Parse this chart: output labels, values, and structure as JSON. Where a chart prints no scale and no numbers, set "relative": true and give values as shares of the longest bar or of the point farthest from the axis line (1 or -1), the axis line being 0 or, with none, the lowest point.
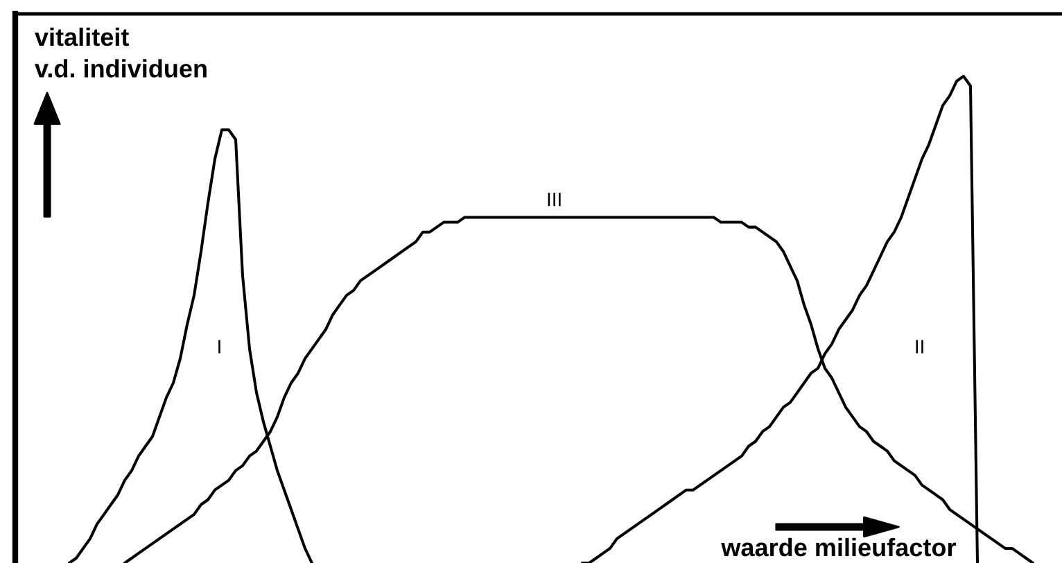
{
  "chart_data": {
    "type": "line",
    "relative": true,
    "line_style": "solid",
    "ylabel": "vitaliteit\nv.d. individuen",
    "xlabel": "waarde milieufactor",
    "categories": [
      null,
      null,
      null,
      null,
      null,
      null,
      null,
      null,
      null,
      null,
      null,
      null,
      null,
      null,
      null,
      null,
      null,
      null,
      null,
      null,
      null,
      null,
      null,
      null,
      null,
      null,
      null,
      null,
      null,
      null,
      null,
      null,
      null,
      null,
      null,
      null,
      null,
      null,
      null,
      null,
      null,
      null,
      null,
      null,
      null,
      null,
      null,
      null,
      null,
      null,
      null,
      null,
      null,
      null,
      null,
      null,
      null,
      null,
      null,
      null,
      null,
      null,
      null,
      null,
      null,
      null,
      null,
      null,
      null,
      null,
      null,
      null,
      null,
      null,
      null,
      null,
      null,
      null,
      null,
      null,
      null,
      null,
      null,
      null,
      null,
      null,
      null,
      null,
      null,
      null,
      null,
      null,
      null,
      null,
      null,
      null,
      null,
      null,
      null,
      null,
      null,
      null,
      null,
      null,
      null,
      null,
      null,
      null,
      null,
      null,
      null,
      null,
      null,
      null,
      null,
      null,
      null,
      null,
      null,
      null,
      null,
      null,
      null,
      null,
      null,
      null,
      null,
      null,
      null,
      null,
      null,
      null,
      null,
      null,
      null,
      null,
      null,
      null,
      null,
      null,
      null,
      null,
      null,
      null,
      null
    ],
    "series": [
      {
        "name": "I",
        "color": "#000000",
        "values": [
          null,
          0,
          0.01,
          0.03,
          0.05,
          0.08,
          0.1,
          0.12,
          0.14,
          0.17,
          0.19,
          0.22,
          0.24,
          0.26,
          0.3,
          0.34,
          0.37,
          0.42,
          0.49,
          0.55,
          0.64,
          0.74,
          0.83,
          0.89,
          0.89,
          0.87,
          0.59,
          0.44,
          0.35,
          0.29,
          0.24,
          0.19,
          0.15,
          0.11,
          0.07,
          0.03,
          0,
          null,
          null,
          null,
          null,
          null,
          null,
          null,
          null,
          null,
          null,
          null,
          null,
          null,
          null,
          null,
          null,
          null,
          null,
          null,
          null,
          null,
          null,
          null,
          null,
          null,
          null,
          null,
          null,
          null,
          null,
          null,
          null,
          null,
          null,
          null,
          null,
          null,
          null,
          null,
          null,
          null,
          null,
          null,
          null,
          null,
          null,
          null,
          null,
          null,
          null,
          null,
          null,
          null,
          null,
          null,
          null,
          null,
          null,
          null,
          null,
          null,
          null,
          null,
          null,
          null,
          null,
          null,
          null,
          null,
          null,
          null,
          null,
          null,
          null,
          null,
          null,
          null,
          null,
          null,
          null,
          null,
          null,
          null,
          null,
          null,
          null,
          null,
          null,
          null,
          null,
          null,
          null,
          null,
          null,
          null,
          null,
          null,
          null,
          null,
          null,
          null,
          null,
          null,
          null,
          null,
          null,
          null,
          null
        ]
      },
      {
        "name": "II",
        "color": "#000000",
        "values": [
          null,
          null,
          null,
          null,
          null,
          null,
          null,
          null,
          null,
          null,
          null,
          null,
          null,
          null,
          null,
          null,
          null,
          null,
          null,
          null,
          null,
          null,
          null,
          null,
          null,
          null,
          null,
          null,
          null,
          null,
          null,
          null,
          null,
          null,
          null,
          null,
          null,
          null,
          null,
          null,
          null,
          null,
          null,
          null,
          null,
          null,
          null,
          null,
          null,
          null,
          null,
          null,
          null,
          null,
          null,
          null,
          null,
          null,
          null,
          null,
          null,
          null,
          null,
          null,
          null,
          null,
          null,
          null,
          null,
          null,
          null,
          null,
          null,
          null,
          null,
          0,
          0,
          0.01,
          0.02,
          0.03,
          0.05,
          0.06,
          0.07,
          0.08,
          0.09,
          0.1,
          0.11,
          0.12,
          0.13,
          0.14,
          0.15,
          0.15,
          0.16,
          0.17,
          0.18,
          0.19,
          0.2,
          0.21,
          0.22,
          0.24,
          0.25,
          0.27,
          0.28,
          0.3,
          0.32,
          0.33,
          0.35,
          0.37,
          0.39,
          0.4,
          0.43,
          0.45,
          0.48,
          0.5,
          0.52,
          0.55,
          0.57,
          0.6,
          0.63,
          0.66,
          0.68,
          0.71,
          0.75,
          0.79,
          0.83,
          0.86,
          0.9,
          0.94,
          0.96,
          0.99,
          1,
          0.98,
          0,
          null,
          null,
          null,
          null,
          null,
          null,
          null,
          null,
          null,
          null,
          null,
          null
        ]
      },
      {
        "name": "III",
        "color": "#000000",
        "values": [
          null,
          null,
          null,
          null,
          null,
          null,
          null,
          null,
          null,
          0,
          0.01,
          0.02,
          0.03,
          0.04,
          0.05,
          0.06,
          0.07,
          0.08,
          0.09,
          0.1,
          0.12,
          0.13,
          0.15,
          0.16,
          0.17,
          0.19,
          0.2,
          0.22,
          0.23,
          0.25,
          0.27,
          0.3,
          0.34,
          0.37,
          0.39,
          0.42,
          0.44,
          0.46,
          0.48,
          0.51,
          0.53,
          0.55,
          0.56,
          0.58,
          0.59,
          0.6,
          0.61,
          0.62,
          0.63,
          0.64,
          0.65,
          0.66,
          0.68,
          0.68,
          0.69,
          0.7,
          0.7,
          0.7,
          0.71,
          0.71,
          0.71,
          0.71,
          0.71,
          0.71,
          0.71,
          0.71,
          0.71,
          0.71,
          0.71,
          0.71,
          0.71,
          0.71,
          0.71,
          0.71,
          0.71,
          0.71,
          0.71,
          0.71,
          0.71,
          0.71,
          0.71,
          0.71,
          0.71,
          0.71,
          0.71,
          0.71,
          0.71,
          0.71,
          0.71,
          0.71,
          0.71,
          0.71,
          0.71,
          0.71,
          0.71,
          0.7,
          0.7,
          0.7,
          0.7,
          0.69,
          0.69,
          0.68,
          0.67,
          0.66,
          0.64,
          0.61,
          0.58,
          0.53,
          0.49,
          0.44,
          0.4,
          0.38,
          0.35,
          0.32,
          0.3,
          0.28,
          0.27,
          0.25,
          0.24,
          0.23,
          0.21,
          0.2,
          0.19,
          0.18,
          0.16,
          0.15,
          0.14,
          0.13,
          0.11,
          0.1,
          0.09,
          0.08,
          0.07,
          0.06,
          0.05,
          0.04,
          0.03,
          0.03,
          0.02,
          0.01,
          0,
          null,
          null,
          null,
          null
        ]
      }
    ]
  }
}
